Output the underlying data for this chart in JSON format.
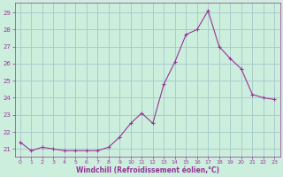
{
  "x": [
    0,
    1,
    2,
    3,
    4,
    5,
    6,
    7,
    8,
    9,
    10,
    11,
    12,
    13,
    14,
    15,
    16,
    17,
    18,
    19,
    20,
    21,
    22,
    23
  ],
  "y": [
    21.4,
    20.9,
    21.1,
    21.0,
    20.9,
    20.9,
    20.9,
    20.9,
    21.1,
    21.7,
    22.5,
    23.1,
    22.5,
    24.8,
    26.1,
    27.7,
    28.0,
    29.1,
    27.0,
    26.3,
    25.7,
    24.2,
    24.0,
    23.9
  ],
  "line_color": "#993399",
  "marker_color": "#993399",
  "bg_color": "#cceedd",
  "grid_color": "#aacccc",
  "xlabel": "Windchill (Refroidissement éolien,°C)",
  "xlabel_color": "#993399",
  "ytick_labels": [
    "21",
    "22",
    "23",
    "24",
    "25",
    "26",
    "27",
    "28",
    "29"
  ],
  "ytick_vals": [
    21,
    22,
    23,
    24,
    25,
    26,
    27,
    28,
    29
  ],
  "xtick_vals": [
    0,
    1,
    2,
    3,
    4,
    5,
    6,
    7,
    8,
    9,
    10,
    11,
    12,
    13,
    14,
    15,
    16,
    17,
    18,
    19,
    20,
    21,
    22,
    23
  ],
  "ylim": [
    20.55,
    29.55
  ],
  "xlim": [
    -0.5,
    23.5
  ]
}
